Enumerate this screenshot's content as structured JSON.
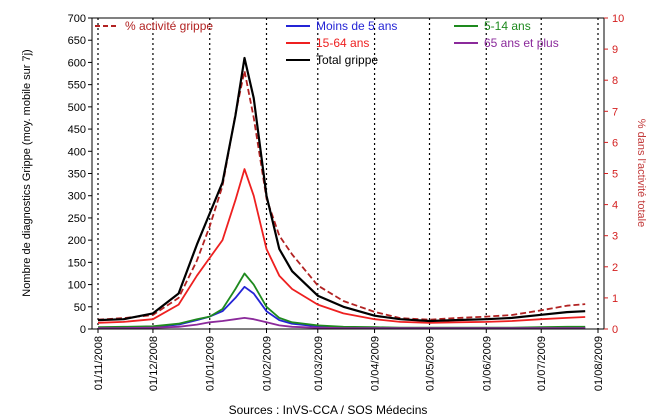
{
  "chart_data": {
    "type": "line",
    "title": "",
    "source": "Sources : InVS-CCA / SOS Médecins",
    "ylabel": "Nombre de diagnostics Grippe (moy. mobile sur 7j)",
    "ylabel_right": "% dans l'activité totale",
    "ylim": [
      0,
      700
    ],
    "ylim_right": [
      0,
      10
    ],
    "y_ticks": [
      0,
      50,
      100,
      150,
      200,
      250,
      300,
      350,
      400,
      450,
      500,
      550,
      600,
      650,
      700
    ],
    "y_ticks_right": [
      0,
      1,
      2,
      3,
      4,
      5,
      6,
      7,
      8,
      9,
      10
    ],
    "x_ticks": [
      "01/11/2008",
      "01/12/2008",
      "01/01/2009",
      "01/02/2009",
      "01/03/2009",
      "01/04/2009",
      "01/05/2009",
      "01/06/2009",
      "01/07/2009",
      "01/08/2009"
    ],
    "x_dates": [
      "2008-11-01",
      "2008-11-15",
      "2008-12-01",
      "2008-12-15",
      "2008-12-25",
      "2009-01-01",
      "2009-01-08",
      "2009-01-15",
      "2009-01-20",
      "2009-01-25",
      "2009-02-01",
      "2009-02-08",
      "2009-02-15",
      "2009-03-01",
      "2009-03-15",
      "2009-04-01",
      "2009-04-15",
      "2009-05-01",
      "2009-05-15",
      "2009-06-01",
      "2009-06-15",
      "2009-07-01",
      "2009-07-15",
      "2009-07-25"
    ],
    "legend": {
      "placement": "top"
    },
    "grid": {
      "vertical_dotted": true
    },
    "series": [
      {
        "name": "% activité grippe",
        "axis": "right",
        "color": "#b22222",
        "dash": true,
        "values": [
          0.3,
          0.35,
          0.45,
          1.0,
          2.2,
          3.3,
          4.6,
          6.9,
          8.3,
          6.8,
          4.2,
          3.0,
          2.4,
          1.4,
          0.9,
          0.55,
          0.35,
          0.3,
          0.35,
          0.4,
          0.45,
          0.6,
          0.75,
          0.8
        ]
      },
      {
        "name": "Moins de 5 ans",
        "axis": "left",
        "color": "#2424d6",
        "values": [
          3,
          4,
          5,
          10,
          20,
          28,
          40,
          70,
          95,
          80,
          40,
          20,
          12,
          6,
          4,
          3,
          2,
          2,
          2,
          2,
          2,
          2,
          3,
          3
        ]
      },
      {
        "name": "5-14 ans",
        "axis": "left",
        "color": "#1e8a1e",
        "values": [
          4,
          5,
          6,
          12,
          22,
          28,
          45,
          90,
          125,
          100,
          50,
          25,
          15,
          8,
          5,
          4,
          3,
          3,
          3,
          3,
          3,
          4,
          5,
          5
        ]
      },
      {
        "name": "15-64 ans",
        "axis": "left",
        "color": "#ee2020",
        "values": [
          14,
          16,
          22,
          55,
          120,
          160,
          200,
          290,
          360,
          300,
          180,
          120,
          90,
          55,
          35,
          22,
          16,
          14,
          15,
          16,
          18,
          22,
          25,
          27
        ]
      },
      {
        "name": "65 ans et plus",
        "axis": "left",
        "color": "#8b2a9b",
        "values": [
          2,
          2,
          3,
          5,
          10,
          15,
          18,
          22,
          25,
          22,
          15,
          8,
          5,
          3,
          2,
          2,
          2,
          2,
          2,
          2,
          2,
          2,
          2,
          2
        ]
      },
      {
        "name": "Total grippe",
        "axis": "left",
        "color": "#000000",
        "values": [
          20,
          22,
          35,
          80,
          190,
          260,
          330,
          480,
          610,
          520,
          300,
          180,
          130,
          75,
          50,
          30,
          22,
          18,
          20,
          22,
          25,
          32,
          38,
          40
        ]
      }
    ]
  }
}
